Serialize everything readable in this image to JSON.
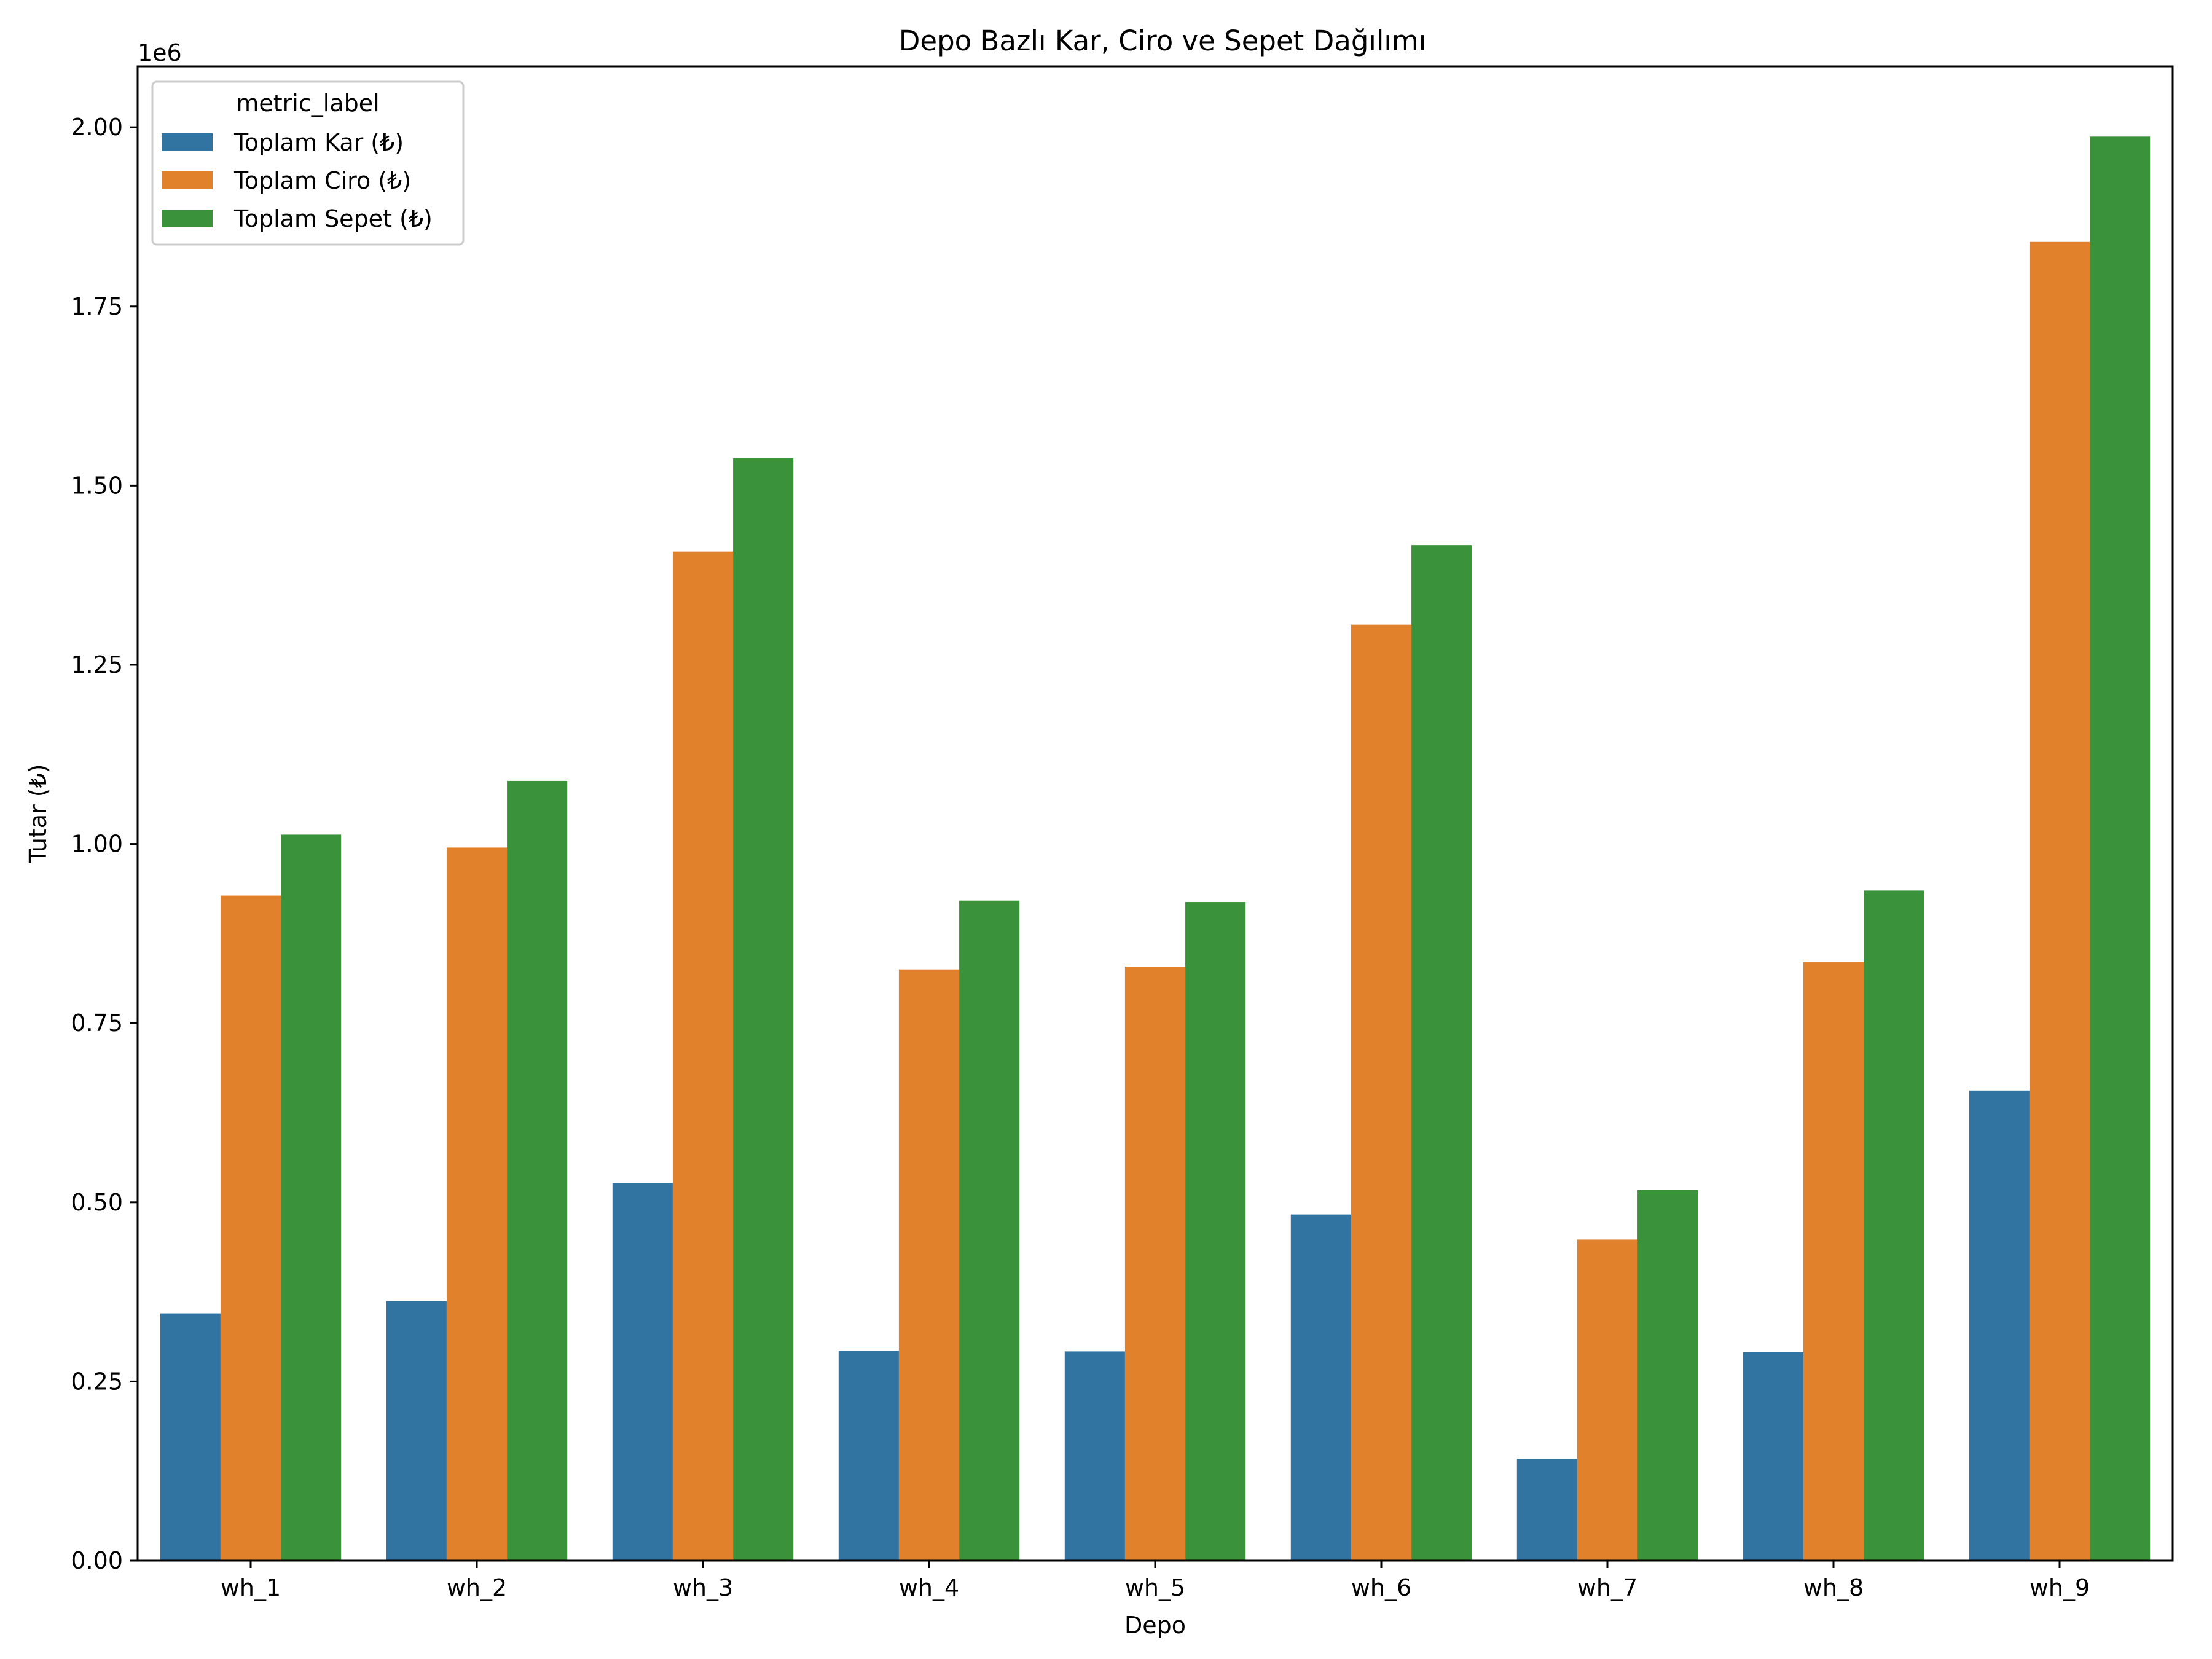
{
  "chart_data": {
    "type": "bar",
    "title": "Depo Bazlı Kar, Ciro ve Sepet Dağılımı",
    "xlabel": "Depo",
    "ylabel": "Tutar (₺)",
    "y_offset_label": "1e6",
    "y_scale": 1000000,
    "ylim": [
      0,
      2085000
    ],
    "yticks": [
      0,
      250000,
      500000,
      750000,
      1000000,
      1250000,
      1500000,
      1750000,
      2000000
    ],
    "ytick_labels": [
      "0.00",
      "0.25",
      "0.50",
      "0.75",
      "1.00",
      "1.25",
      "1.50",
      "1.75",
      "2.00"
    ],
    "categories": [
      "wh_1",
      "wh_2",
      "wh_3",
      "wh_4",
      "wh_5",
      "wh_6",
      "wh_7",
      "wh_8",
      "wh_9"
    ],
    "legend": {
      "title": "metric_label",
      "position": "top-left"
    },
    "grid": false,
    "series": [
      {
        "name": "Toplam Kar (₺)",
        "color": "#3274a1",
        "values": [
          345000,
          362000,
          527000,
          293000,
          292000,
          483000,
          142000,
          291000,
          656000
        ]
      },
      {
        "name": "Toplam Ciro (₺)",
        "color": "#e1812c",
        "values": [
          928000,
          995000,
          1408000,
          825000,
          829000,
          1306000,
          448000,
          835000,
          1840000
        ]
      },
      {
        "name": "Toplam Sepet (₺)",
        "color": "#3a923a",
        "values": [
          1013000,
          1088000,
          1538000,
          921000,
          919000,
          1417000,
          517000,
          935000,
          1987000
        ]
      }
    ]
  }
}
